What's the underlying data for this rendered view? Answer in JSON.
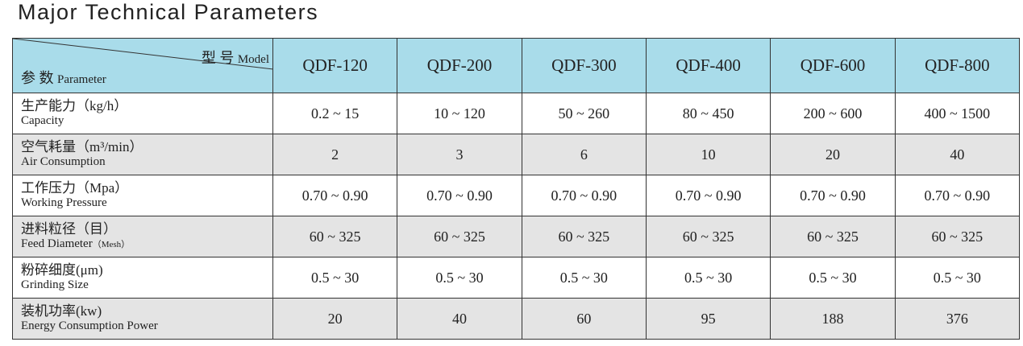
{
  "header": {
    "title": "Major Technical Parameters"
  },
  "table": {
    "corner": {
      "model_zh": "型 号",
      "model_en": "Model",
      "param_zh": "参 数",
      "param_en": "Parameter"
    },
    "columns": [
      "QDF-120",
      "QDF-200",
      "QDF-300",
      "QDF-400",
      "QDF-600",
      "QDF-800"
    ],
    "rows": [
      {
        "label_zh": "生产能力",
        "unit": "（kg/h）",
        "label_en": "Capacity",
        "values": [
          "0.2 ~ 15",
          "10 ~ 120",
          "50 ~ 260",
          "80 ~ 450",
          "200 ~ 600",
          "400 ~ 1500"
        ]
      },
      {
        "label_zh": "空气耗量",
        "unit": "（m³/min）",
        "label_en": "Air Consumption",
        "values": [
          2,
          3,
          6,
          10,
          20,
          40
        ]
      },
      {
        "label_zh": "工作压力",
        "unit": "（Mpa）",
        "label_en": "Working Pressure",
        "values": [
          "0.70 ~ 0.90",
          "0.70 ~ 0.90",
          "0.70 ~ 0.90",
          "0.70 ~ 0.90",
          "0.70 ~ 0.90",
          "0.70 ~ 0.90"
        ]
      },
      {
        "label_zh": "进料粒径",
        "unit": "（目）",
        "label_en": "Feed Diameter",
        "unit_en": "（Mesh）",
        "values": [
          "60 ~ 325",
          "60 ~ 325",
          "60 ~ 325",
          "60 ~ 325",
          "60 ~ 325",
          "60 ~ 325"
        ]
      },
      {
        "label_zh": "粉碎细度",
        "unit": "(μm)",
        "label_en": "Grinding Size",
        "values": [
          "0.5 ~ 30",
          "0.5 ~ 30",
          "0.5 ~ 30",
          "0.5 ~ 30",
          "0.5 ~ 30",
          "0.5 ~ 30"
        ]
      },
      {
        "label_zh": "装机功率",
        "unit": "(kw)",
        "label_en": "Energy Consumption Power",
        "values": [
          20,
          40,
          60,
          95,
          188,
          376
        ]
      }
    ]
  }
}
